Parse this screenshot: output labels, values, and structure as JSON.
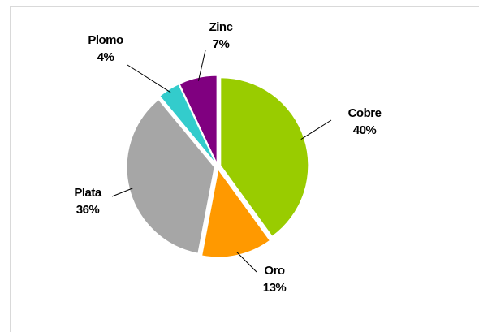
{
  "chart_data": {
    "type": "pie",
    "categories": [
      "Cobre",
      "Oro",
      "Plata",
      "Plomo",
      "Zinc"
    ],
    "values": [
      40,
      13,
      36,
      4,
      7
    ],
    "value_labels": [
      "40%",
      "13%",
      "36%",
      "4%",
      "7%"
    ],
    "colors": [
      "#99cc00",
      "#ff9900",
      "#a6a6a6",
      "#33cccc",
      "#800080"
    ]
  }
}
